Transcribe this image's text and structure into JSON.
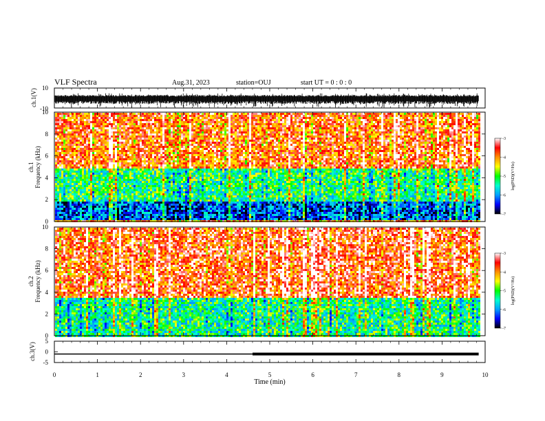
{
  "header": {
    "title": "VLF Spectra",
    "date": "Aug.31, 2023",
    "station": "station=OUJ",
    "start_ut": "start UT =  0 : 0  : 0"
  },
  "colorbar": {
    "label": "log(PSD)(V²/Hz)",
    "ticks": [
      "-3",
      "-4",
      "-5",
      "-6",
      "-7"
    ],
    "colors": [
      "#000000",
      "#0000ff",
      "#00a0ff",
      "#00ffd0",
      "#00ff00",
      "#ffff00",
      "#ff9000",
      "#ff0000",
      "#ffffff"
    ]
  },
  "chart_data": [
    {
      "type": "line",
      "panel": "ch.1 waveform",
      "ylabel": "ch.1(V)",
      "ylim": [
        -10,
        10
      ],
      "y_ticks": [
        "10",
        "-10"
      ],
      "x_range_min": [
        0,
        9.85
      ],
      "approx_envelope_V": [
        -6,
        3
      ],
      "color": "#000000"
    },
    {
      "type": "heatmap",
      "panel": "ch.1 spectrogram",
      "ylabel": "ch.1\nFrequency (kHz)",
      "ylim": [
        0,
        10
      ],
      "y_ticks": [
        "10",
        "8",
        "6",
        "4",
        "2",
        "0"
      ],
      "x_range_min": [
        0,
        9.85
      ],
      "value_range_logPSD": [
        -7,
        -3
      ],
      "approx_profile": [
        {
          "freq_kHz": [
            0.3,
            2.0
          ],
          "logPSD": -6.2
        },
        {
          "freq_kHz": [
            2.0,
            5.0
          ],
          "logPSD": -5.2
        },
        {
          "freq_kHz": [
            5.0,
            10.0
          ],
          "logPSD": -3.7
        }
      ]
    },
    {
      "type": "heatmap",
      "panel": "ch.2 spectrogram",
      "ylabel": "ch.2\nFrequency (kHz)",
      "ylim": [
        0,
        10
      ],
      "y_ticks": [
        "10",
        "8",
        "6",
        "4",
        "2",
        "0"
      ],
      "x_range_min": [
        0,
        9.85
      ],
      "value_range_logPSD": [
        -7,
        -3
      ],
      "approx_profile": [
        {
          "freq_kHz": [
            0.0,
            3.5
          ],
          "logPSD": -5.3
        },
        {
          "freq_kHz": [
            3.5,
            10.0
          ],
          "logPSD": -3.6
        }
      ]
    },
    {
      "type": "line",
      "panel": "ch.3",
      "ylabel": "ch.3(V)",
      "ylim": [
        -5,
        5
      ],
      "y_ticks": [
        "5",
        "0",
        "-5"
      ],
      "x": [
        0,
        4.6,
        4.6,
        9.85
      ],
      "y": [
        -1,
        -1,
        -1,
        -1
      ],
      "thick_from_min": 4.6,
      "color": "#000000"
    }
  ],
  "xaxis": {
    "label": "Time (min)",
    "range": [
      0,
      10
    ],
    "ticks": [
      "0",
      "1",
      "2",
      "3",
      "4",
      "5",
      "6",
      "7",
      "8",
      "9",
      "10"
    ]
  }
}
